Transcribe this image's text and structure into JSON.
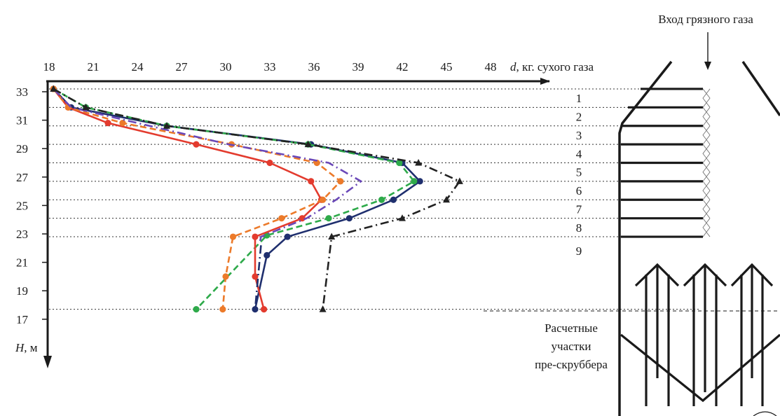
{
  "chart_data": {
    "type": "line",
    "x_axis": {
      "label_var": "d",
      "label_rest": ", кг. сухого газа",
      "ticks": [
        18,
        21,
        24,
        27,
        30,
        33,
        36,
        39,
        42,
        45,
        48
      ],
      "range": [
        18,
        48
      ],
      "position": "top"
    },
    "y_axis": {
      "label_var": "H",
      "label_rest": ", м",
      "ticks": [
        33,
        31,
        29,
        27,
        25,
        23,
        21,
        19,
        17
      ],
      "range": [
        16,
        33.5
      ],
      "direction": "downward"
    },
    "grid": "horizontal dotted lines at section boundaries",
    "section_levels": [
      33.2,
      31.9,
      30.6,
      29.3,
      28.0,
      26.7,
      25.4,
      24.1,
      22.8,
      17.7
    ],
    "section_labels": [
      "1",
      "2",
      "3",
      "4",
      "5",
      "6",
      "7",
      "8",
      "9"
    ],
    "series": [
      {
        "color": "#1f2f6e",
        "dash": "solid",
        "marker": "circle",
        "points": [
          [
            18.3,
            33.2
          ],
          [
            19.5,
            31.9
          ],
          [
            26.0,
            30.6
          ],
          [
            35.8,
            29.3
          ],
          [
            42.0,
            28.0
          ],
          [
            43.2,
            26.7
          ],
          [
            41.4,
            25.4
          ],
          [
            38.4,
            24.1
          ],
          [
            34.2,
            22.8
          ],
          [
            32.8,
            21.5
          ],
          [
            32.0,
            17.7
          ]
        ]
      },
      {
        "color": "#2eaa4a",
        "dash": "dashed",
        "marker": "circle",
        "points": [
          [
            18.3,
            33.2
          ],
          [
            20.5,
            31.9
          ],
          [
            26.0,
            30.6
          ],
          [
            35.6,
            29.3
          ],
          [
            41.8,
            28.0
          ],
          [
            42.8,
            26.7
          ],
          [
            40.6,
            25.4
          ],
          [
            37.0,
            24.1
          ],
          [
            32.8,
            22.9
          ],
          [
            28.0,
            17.7
          ]
        ]
      },
      {
        "color": "#e33b2e",
        "dash": "solid",
        "marker": "circle",
        "points": [
          [
            18.3,
            33.2
          ],
          [
            19.3,
            31.9
          ],
          [
            22.0,
            30.8
          ],
          [
            28.0,
            29.3
          ],
          [
            33.0,
            28.0
          ],
          [
            35.8,
            26.7
          ],
          [
            36.5,
            25.4
          ],
          [
            35.2,
            24.1
          ],
          [
            32.0,
            22.8
          ],
          [
            32.0,
            20.0
          ],
          [
            32.6,
            17.7
          ]
        ]
      },
      {
        "color": "#ec7a2a",
        "dash": "dashed",
        "marker": "circle",
        "points": [
          [
            18.3,
            33.2
          ],
          [
            19.3,
            31.9
          ],
          [
            23.0,
            30.8
          ],
          [
            30.4,
            29.3
          ],
          [
            36.2,
            28.0
          ],
          [
            37.8,
            26.7
          ],
          [
            36.6,
            25.4
          ],
          [
            33.8,
            24.1
          ],
          [
            30.5,
            22.8
          ],
          [
            30.0,
            20.0
          ],
          [
            29.8,
            17.7
          ]
        ]
      },
      {
        "color": "#6a48b8",
        "dash": "dashdot",
        "marker": "none",
        "points": [
          [
            18.3,
            33.2
          ],
          [
            19.5,
            31.9
          ],
          [
            24.0,
            30.8
          ],
          [
            30.2,
            29.3
          ],
          [
            37.0,
            28.0
          ],
          [
            39.2,
            26.7
          ],
          [
            37.5,
            25.4
          ],
          [
            35.5,
            24.1
          ],
          [
            32.4,
            22.8
          ],
          [
            32.3,
            22.3
          ]
        ]
      },
      {
        "color": "#1f2f6e",
        "dash": "dashdot",
        "marker": "none",
        "points": [
          [
            32.4,
            22.2
          ],
          [
            32.0,
            17.7
          ]
        ]
      },
      {
        "color": "#222222",
        "dash": "dashdot",
        "marker": "triangle",
        "points": [
          [
            18.3,
            33.2
          ],
          [
            20.5,
            31.9
          ],
          [
            26.0,
            30.6
          ],
          [
            35.6,
            29.3
          ],
          [
            43.1,
            28.0
          ],
          [
            45.9,
            26.7
          ],
          [
            45.0,
            25.4
          ],
          [
            42.0,
            24.1
          ],
          [
            37.2,
            22.8
          ],
          [
            36.6,
            17.7
          ]
        ]
      }
    ]
  },
  "scrubber": {
    "inlet_label": "Вход грязного газа",
    "zones_caption": [
      "Расчетные",
      "участки",
      "пре-скруббера"
    ]
  }
}
